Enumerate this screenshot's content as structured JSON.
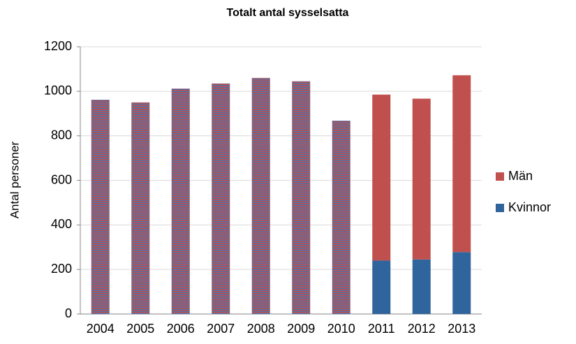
{
  "chart_data": {
    "type": "stacked_bar",
    "title": "Totalt antal sysselsatta",
    "y_label": "Antal personer",
    "categories": [
      "2004",
      "2005",
      "2006",
      "2007",
      "2008",
      "2009",
      "2010",
      "2011",
      "2012",
      "2013"
    ],
    "series": [
      {
        "name": "Kvinnor",
        "color": "#30649c",
        "values": [
          null,
          null,
          null,
          null,
          null,
          null,
          null,
          240,
          245,
          278
        ]
      },
      {
        "name": "Män",
        "color": "#c0504d",
        "values": [
          null,
          null,
          null,
          null,
          null,
          null,
          null,
          745,
          722,
          794
        ]
      },
      {
        "color": "#8a5a80",
        "pattern": "stripes",
        "values": [
          962,
          950,
          1012,
          1035,
          1060,
          1045,
          868,
          null,
          null,
          null
        ]
      }
    ],
    "ylim": [
      0,
      1200
    ],
    "yticks": [
      0,
      200,
      400,
      600,
      800,
      1000,
      1200
    ],
    "grid": true,
    "legend": "right"
  }
}
